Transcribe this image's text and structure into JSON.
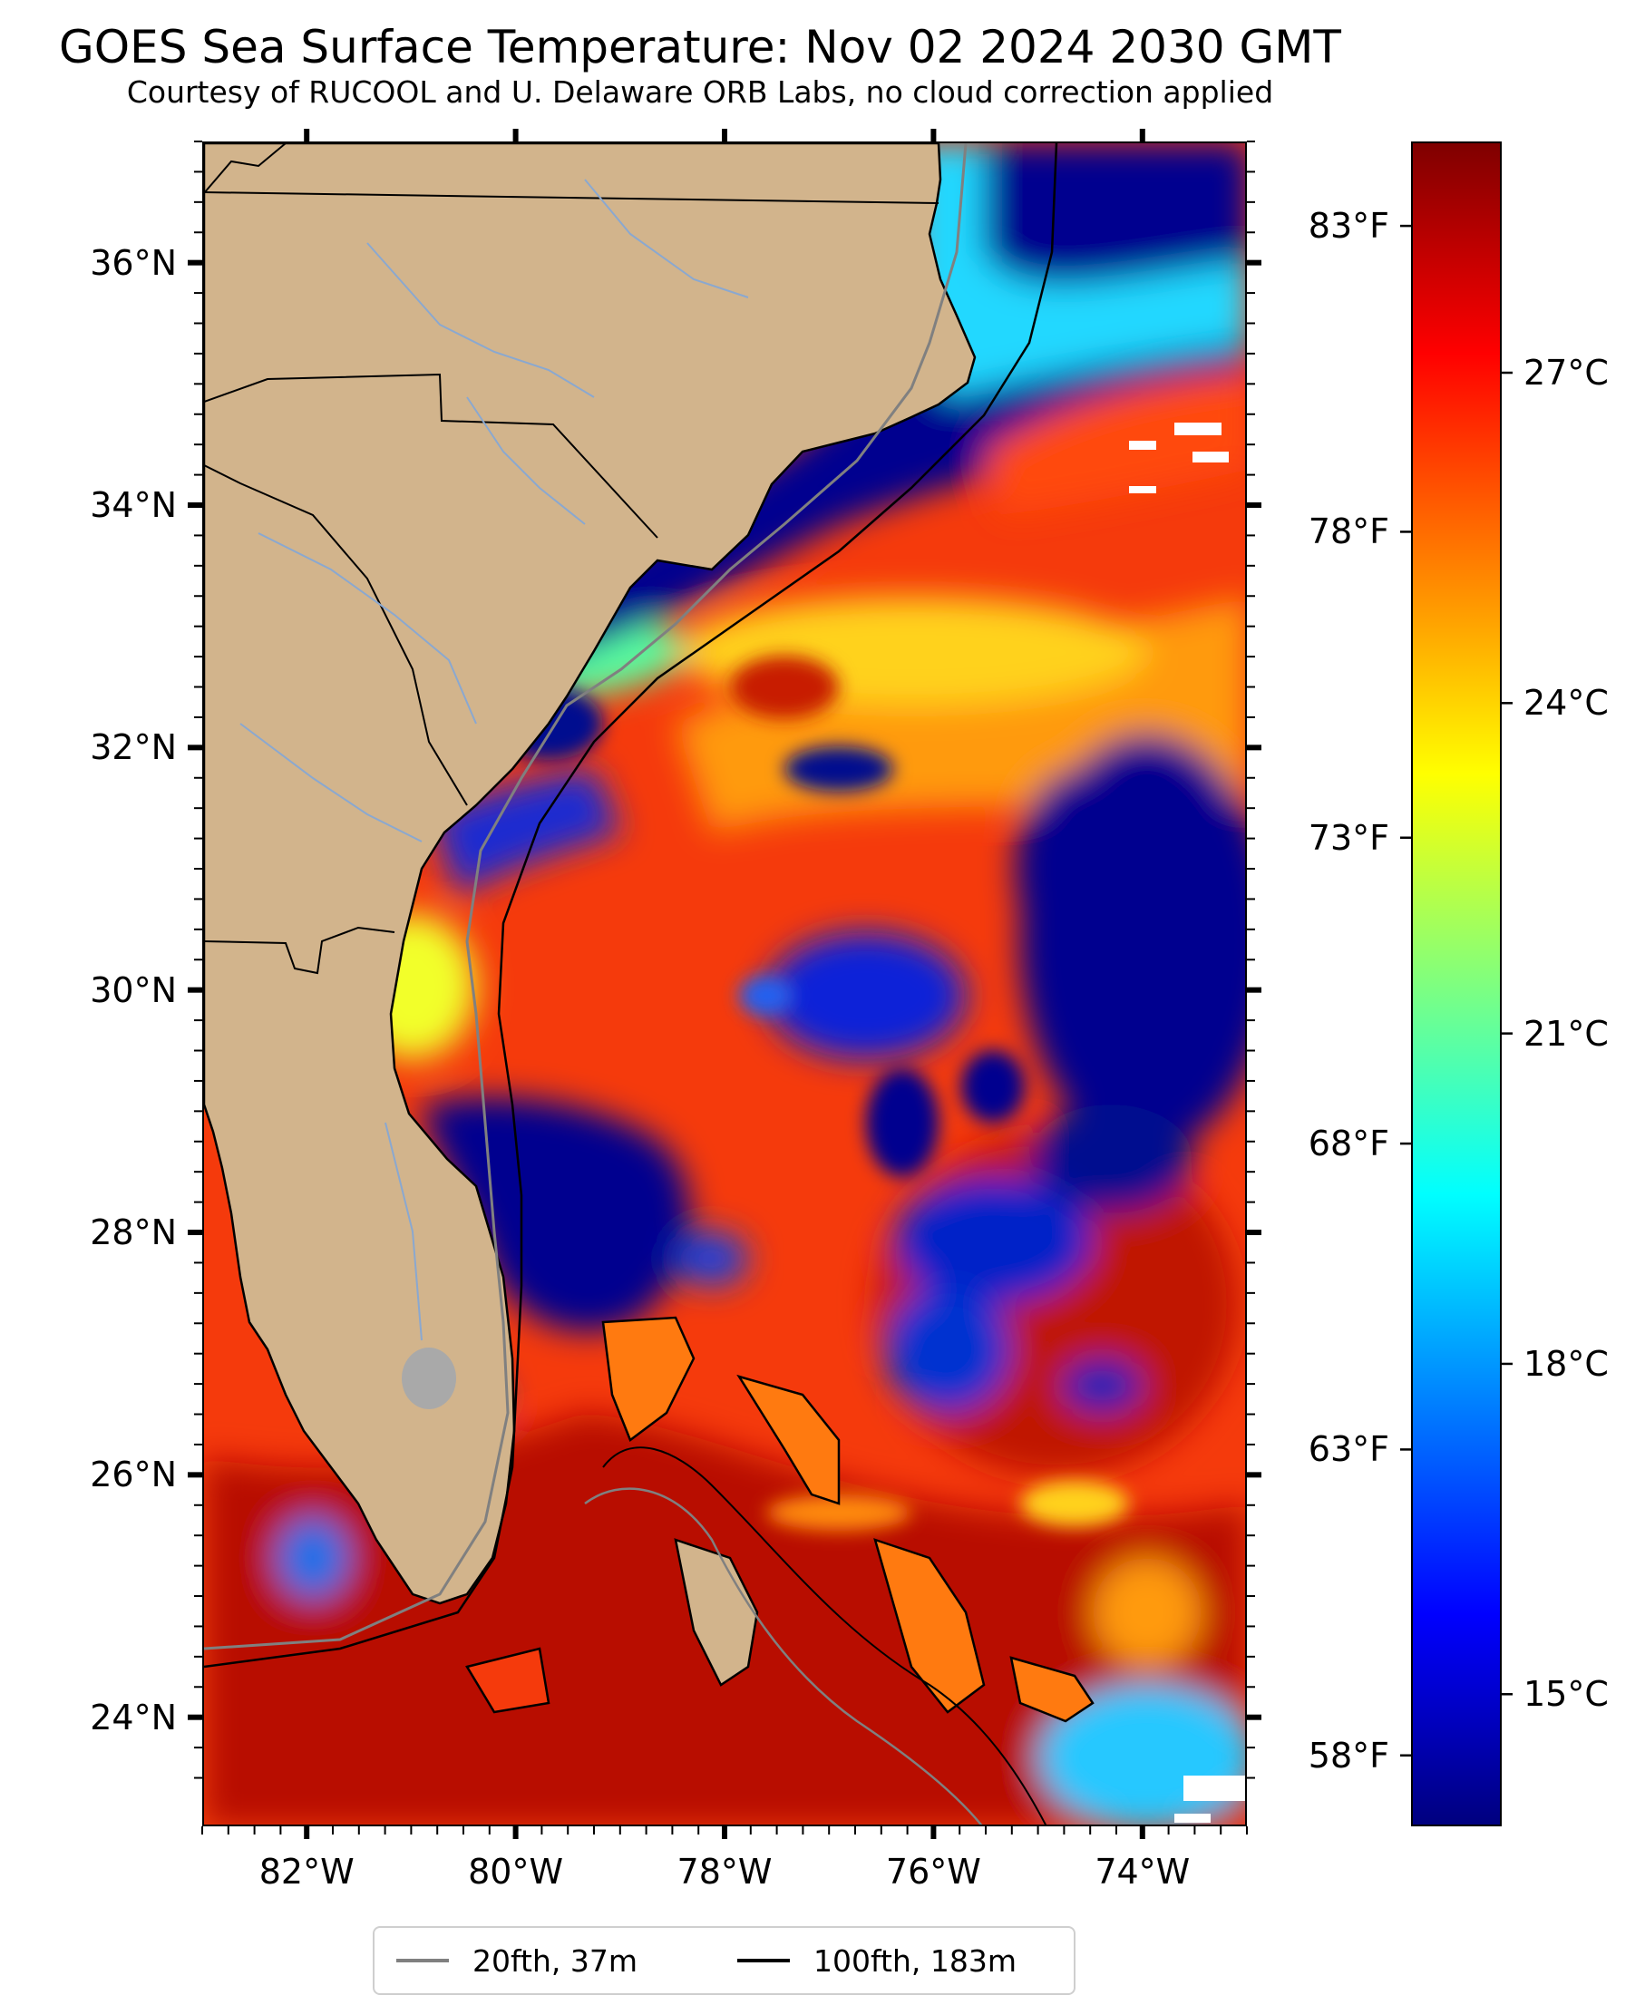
{
  "title": "GOES Sea Surface Temperature: Nov 02 2024 2030 GMT",
  "subtitle": "Courtesy of RUCOOL and U. Delaware ORB Labs, no cloud correction applied",
  "map": {
    "lon_range": [
      -83,
      -73
    ],
    "lat_range": [
      23.1,
      37.0
    ],
    "lat_ticks": [
      {
        "value": 36,
        "label": "36°N"
      },
      {
        "value": 34,
        "label": "34°N"
      },
      {
        "value": 32,
        "label": "32°N"
      },
      {
        "value": 30,
        "label": "30°N"
      },
      {
        "value": 28,
        "label": "28°N"
      },
      {
        "value": 26,
        "label": "26°N"
      },
      {
        "value": 24,
        "label": "24°N"
      }
    ],
    "lon_ticks": [
      {
        "value": -82,
        "label": "82°W"
      },
      {
        "value": -80,
        "label": "80°W"
      },
      {
        "value": -78,
        "label": "78°W"
      },
      {
        "value": -76,
        "label": "76°W"
      },
      {
        "value": -74,
        "label": "74°W"
      }
    ],
    "land_color": "#d2b48c",
    "nodata_color": "#ffffff"
  },
  "colorbar": {
    "colormap": "jet",
    "range_c": [
      13.8,
      29.1
    ],
    "celsius_ticks": [
      {
        "value": 27,
        "label": "27°C"
      },
      {
        "value": 24,
        "label": "24°C"
      },
      {
        "value": 21,
        "label": "21°C"
      },
      {
        "value": 18,
        "label": "18°C"
      },
      {
        "value": 15,
        "label": "15°C"
      }
    ],
    "fahrenheit_ticks": [
      {
        "value": 83,
        "label": "83°F"
      },
      {
        "value": 78,
        "label": "78°F"
      },
      {
        "value": 73,
        "label": "73°F"
      },
      {
        "value": 68,
        "label": "68°F"
      },
      {
        "value": 63,
        "label": "63°F"
      },
      {
        "value": 58,
        "label": "58°F"
      }
    ]
  },
  "legend": {
    "placement": "bottom-center",
    "items": [
      {
        "label": "20fth, 37m",
        "color": "#808080"
      },
      {
        "label": "100fth, 183m",
        "color": "#000000"
      }
    ]
  }
}
